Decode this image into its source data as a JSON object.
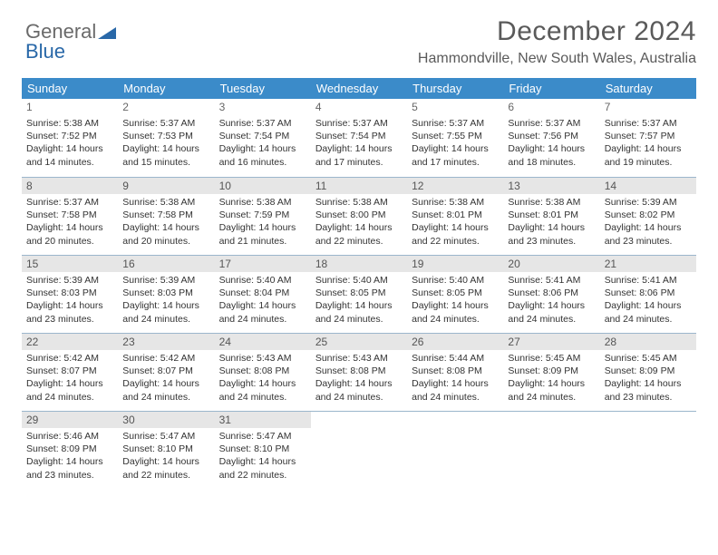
{
  "brand": {
    "part1": "General",
    "part2": "Blue"
  },
  "title": "December 2024",
  "location": "Hammondville, New South Wales, Australia",
  "colors": {
    "header_bg": "#3b8bc9",
    "header_text": "#ffffff",
    "daynum_bg": "#e6e6e6",
    "text": "#333333",
    "border": "#9bb6cc",
    "logo_gray": "#6a6a6a",
    "logo_blue": "#2968a8",
    "title_color": "#5a5a5a"
  },
  "fonts": {
    "title_size_pt": 22,
    "location_size_pt": 12,
    "header_size_pt": 10,
    "body_size_pt": 8
  },
  "weekdays": [
    "Sunday",
    "Monday",
    "Tuesday",
    "Wednesday",
    "Thursday",
    "Friday",
    "Saturday"
  ],
  "weeks": [
    [
      {
        "day": "1",
        "sunrise": "Sunrise: 5:38 AM",
        "sunset": "Sunset: 7:52 PM",
        "day1": "Daylight: 14 hours",
        "day2": "and 14 minutes."
      },
      {
        "day": "2",
        "sunrise": "Sunrise: 5:37 AM",
        "sunset": "Sunset: 7:53 PM",
        "day1": "Daylight: 14 hours",
        "day2": "and 15 minutes."
      },
      {
        "day": "3",
        "sunrise": "Sunrise: 5:37 AM",
        "sunset": "Sunset: 7:54 PM",
        "day1": "Daylight: 14 hours",
        "day2": "and 16 minutes."
      },
      {
        "day": "4",
        "sunrise": "Sunrise: 5:37 AM",
        "sunset": "Sunset: 7:54 PM",
        "day1": "Daylight: 14 hours",
        "day2": "and 17 minutes."
      },
      {
        "day": "5",
        "sunrise": "Sunrise: 5:37 AM",
        "sunset": "Sunset: 7:55 PM",
        "day1": "Daylight: 14 hours",
        "day2": "and 17 minutes."
      },
      {
        "day": "6",
        "sunrise": "Sunrise: 5:37 AM",
        "sunset": "Sunset: 7:56 PM",
        "day1": "Daylight: 14 hours",
        "day2": "and 18 minutes."
      },
      {
        "day": "7",
        "sunrise": "Sunrise: 5:37 AM",
        "sunset": "Sunset: 7:57 PM",
        "day1": "Daylight: 14 hours",
        "day2": "and 19 minutes."
      }
    ],
    [
      {
        "day": "8",
        "sunrise": "Sunrise: 5:37 AM",
        "sunset": "Sunset: 7:58 PM",
        "day1": "Daylight: 14 hours",
        "day2": "and 20 minutes."
      },
      {
        "day": "9",
        "sunrise": "Sunrise: 5:38 AM",
        "sunset": "Sunset: 7:58 PM",
        "day1": "Daylight: 14 hours",
        "day2": "and 20 minutes."
      },
      {
        "day": "10",
        "sunrise": "Sunrise: 5:38 AM",
        "sunset": "Sunset: 7:59 PM",
        "day1": "Daylight: 14 hours",
        "day2": "and 21 minutes."
      },
      {
        "day": "11",
        "sunrise": "Sunrise: 5:38 AM",
        "sunset": "Sunset: 8:00 PM",
        "day1": "Daylight: 14 hours",
        "day2": "and 22 minutes."
      },
      {
        "day": "12",
        "sunrise": "Sunrise: 5:38 AM",
        "sunset": "Sunset: 8:01 PM",
        "day1": "Daylight: 14 hours",
        "day2": "and 22 minutes."
      },
      {
        "day": "13",
        "sunrise": "Sunrise: 5:38 AM",
        "sunset": "Sunset: 8:01 PM",
        "day1": "Daylight: 14 hours",
        "day2": "and 23 minutes."
      },
      {
        "day": "14",
        "sunrise": "Sunrise: 5:39 AM",
        "sunset": "Sunset: 8:02 PM",
        "day1": "Daylight: 14 hours",
        "day2": "and 23 minutes."
      }
    ],
    [
      {
        "day": "15",
        "sunrise": "Sunrise: 5:39 AM",
        "sunset": "Sunset: 8:03 PM",
        "day1": "Daylight: 14 hours",
        "day2": "and 23 minutes."
      },
      {
        "day": "16",
        "sunrise": "Sunrise: 5:39 AM",
        "sunset": "Sunset: 8:03 PM",
        "day1": "Daylight: 14 hours",
        "day2": "and 24 minutes."
      },
      {
        "day": "17",
        "sunrise": "Sunrise: 5:40 AM",
        "sunset": "Sunset: 8:04 PM",
        "day1": "Daylight: 14 hours",
        "day2": "and 24 minutes."
      },
      {
        "day": "18",
        "sunrise": "Sunrise: 5:40 AM",
        "sunset": "Sunset: 8:05 PM",
        "day1": "Daylight: 14 hours",
        "day2": "and 24 minutes."
      },
      {
        "day": "19",
        "sunrise": "Sunrise: 5:40 AM",
        "sunset": "Sunset: 8:05 PM",
        "day1": "Daylight: 14 hours",
        "day2": "and 24 minutes."
      },
      {
        "day": "20",
        "sunrise": "Sunrise: 5:41 AM",
        "sunset": "Sunset: 8:06 PM",
        "day1": "Daylight: 14 hours",
        "day2": "and 24 minutes."
      },
      {
        "day": "21",
        "sunrise": "Sunrise: 5:41 AM",
        "sunset": "Sunset: 8:06 PM",
        "day1": "Daylight: 14 hours",
        "day2": "and 24 minutes."
      }
    ],
    [
      {
        "day": "22",
        "sunrise": "Sunrise: 5:42 AM",
        "sunset": "Sunset: 8:07 PM",
        "day1": "Daylight: 14 hours",
        "day2": "and 24 minutes."
      },
      {
        "day": "23",
        "sunrise": "Sunrise: 5:42 AM",
        "sunset": "Sunset: 8:07 PM",
        "day1": "Daylight: 14 hours",
        "day2": "and 24 minutes."
      },
      {
        "day": "24",
        "sunrise": "Sunrise: 5:43 AM",
        "sunset": "Sunset: 8:08 PM",
        "day1": "Daylight: 14 hours",
        "day2": "and 24 minutes."
      },
      {
        "day": "25",
        "sunrise": "Sunrise: 5:43 AM",
        "sunset": "Sunset: 8:08 PM",
        "day1": "Daylight: 14 hours",
        "day2": "and 24 minutes."
      },
      {
        "day": "26",
        "sunrise": "Sunrise: 5:44 AM",
        "sunset": "Sunset: 8:08 PM",
        "day1": "Daylight: 14 hours",
        "day2": "and 24 minutes."
      },
      {
        "day": "27",
        "sunrise": "Sunrise: 5:45 AM",
        "sunset": "Sunset: 8:09 PM",
        "day1": "Daylight: 14 hours",
        "day2": "and 24 minutes."
      },
      {
        "day": "28",
        "sunrise": "Sunrise: 5:45 AM",
        "sunset": "Sunset: 8:09 PM",
        "day1": "Daylight: 14 hours",
        "day2": "and 23 minutes."
      }
    ],
    [
      {
        "day": "29",
        "sunrise": "Sunrise: 5:46 AM",
        "sunset": "Sunset: 8:09 PM",
        "day1": "Daylight: 14 hours",
        "day2": "and 23 minutes."
      },
      {
        "day": "30",
        "sunrise": "Sunrise: 5:47 AM",
        "sunset": "Sunset: 8:10 PM",
        "day1": "Daylight: 14 hours",
        "day2": "and 22 minutes."
      },
      {
        "day": "31",
        "sunrise": "Sunrise: 5:47 AM",
        "sunset": "Sunset: 8:10 PM",
        "day1": "Daylight: 14 hours",
        "day2": "and 22 minutes."
      },
      null,
      null,
      null,
      null
    ]
  ]
}
